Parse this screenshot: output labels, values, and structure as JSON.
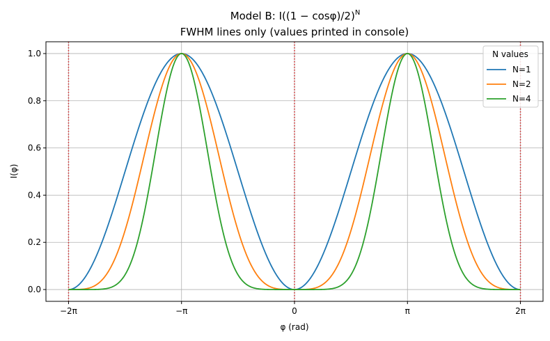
{
  "chart_data": {
    "type": "line",
    "title_line1": "Model B: I((1 − cosφ)/2)",
    "title_sup": "N",
    "title_line2": "FWHM lines only (values printed in console)",
    "xlabel": "φ (rad)",
    "ylabel": "I(φ)",
    "xlim": [
      -6.9115,
      6.9115
    ],
    "ylim": [
      -0.05,
      1.05
    ],
    "x_range": [
      -6.2832,
      6.2832
    ],
    "xticks": [
      {
        "value": -6.2832,
        "label": "−2π"
      },
      {
        "value": -3.1416,
        "label": "−π"
      },
      {
        "value": 0,
        "label": "0"
      },
      {
        "value": 3.1416,
        "label": "π"
      },
      {
        "value": 6.2832,
        "label": "2π"
      }
    ],
    "yticks": [
      {
        "value": 0.0,
        "label": "0.0"
      },
      {
        "value": 0.2,
        "label": "0.2"
      },
      {
        "value": 0.4,
        "label": "0.4"
      },
      {
        "value": 0.6,
        "label": "0.6"
      },
      {
        "value": 0.8,
        "label": "0.8"
      },
      {
        "value": 1.0,
        "label": "1.0"
      }
    ],
    "grid": true,
    "legend": {
      "title": "N values",
      "placement": "top-right"
    },
    "series": [
      {
        "name": "N=1",
        "N": 1,
        "color": "#1f77b4"
      },
      {
        "name": "N=2",
        "N": 2,
        "color": "#ff7f0e"
      },
      {
        "name": "N=4",
        "N": 4,
        "color": "#2ca02c"
      }
    ],
    "vlines": {
      "x": [
        -6.2832,
        0,
        6.2832
      ],
      "color": "#d62728",
      "style": "dotted"
    }
  }
}
